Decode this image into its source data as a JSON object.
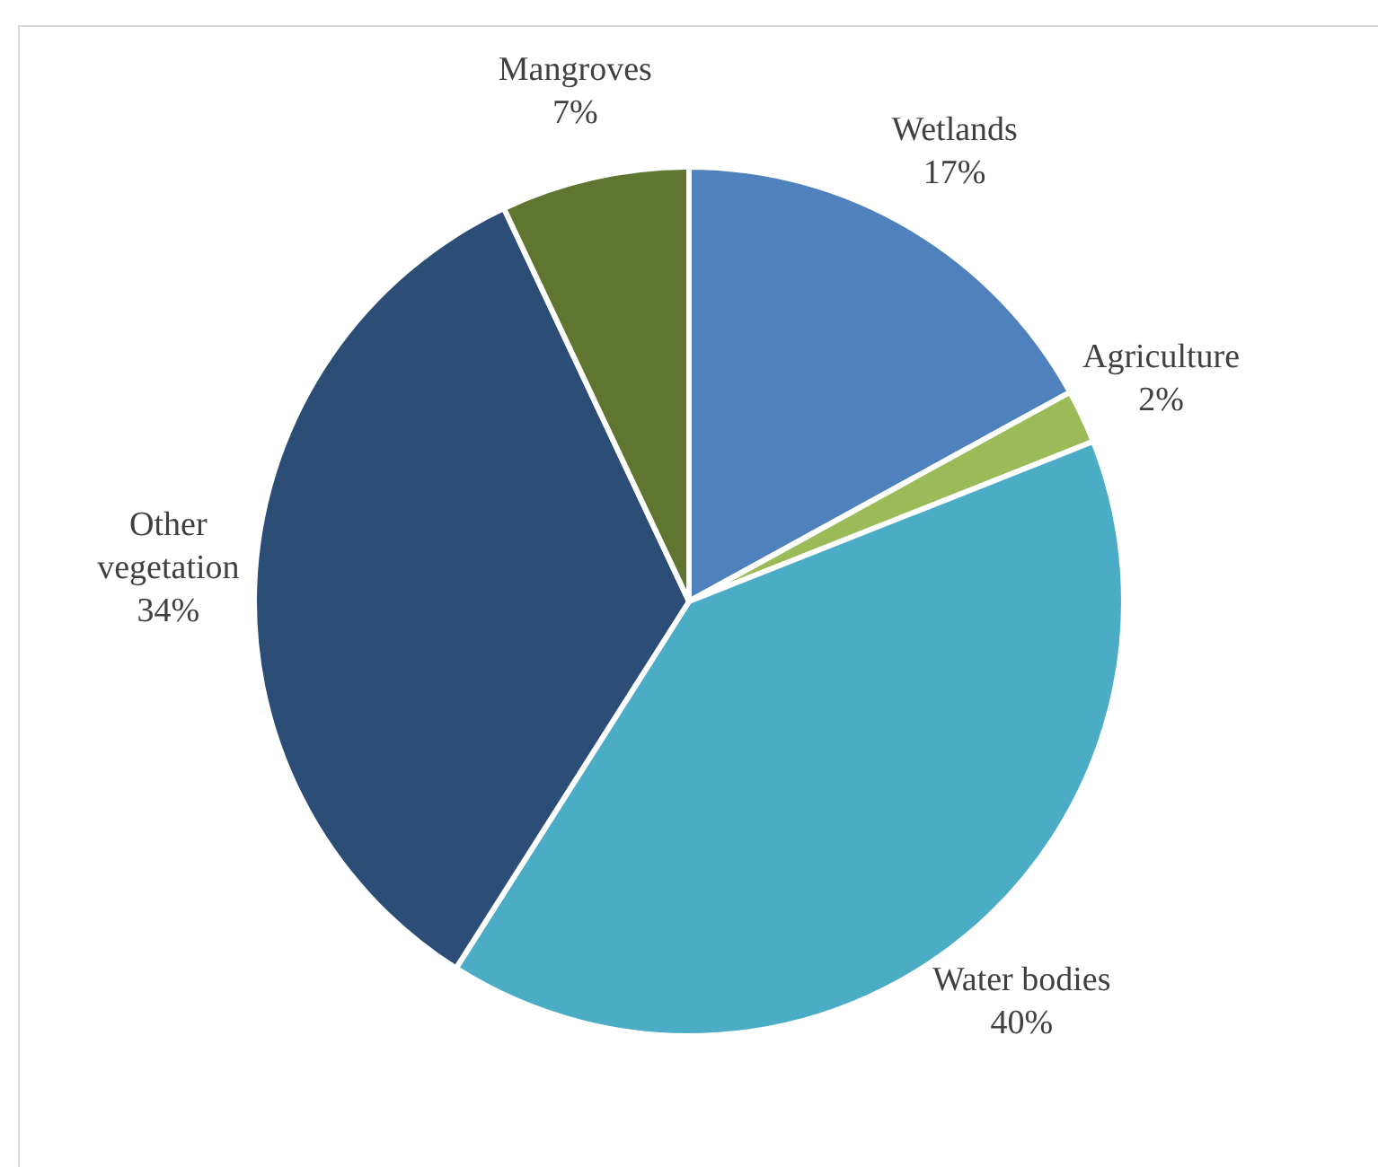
{
  "chart_data": {
    "type": "pie",
    "categories": [
      "Wetlands",
      "Agriculture",
      "Water bodies",
      "Other vegetation",
      "Mangroves"
    ],
    "values": [
      17,
      2,
      40,
      34,
      7
    ],
    "colors": [
      "#4f81bd",
      "#9bbb59",
      "#4bacc6",
      "#2c4d75",
      "#5f7530"
    ],
    "value_labels": [
      "17%",
      "2%",
      "40%",
      "34%",
      "7%"
    ],
    "legend": false
  }
}
